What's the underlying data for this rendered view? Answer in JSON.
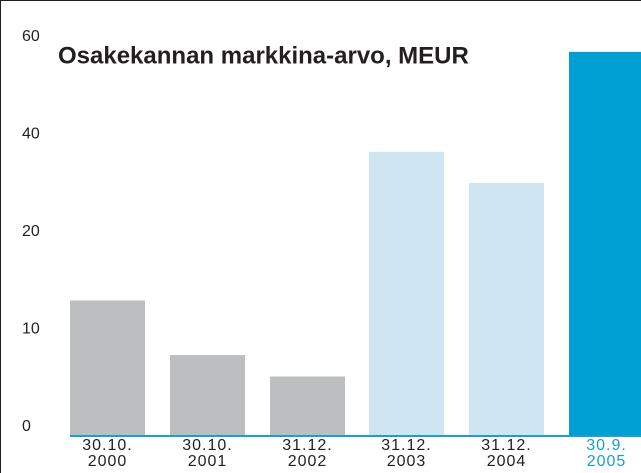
{
  "chart_data": {
    "type": "bar",
    "title": "Osakekannan markkina-arvo, MEUR",
    "categories": [
      "30.10. 2000",
      "30.10. 2001",
      "31.12. 2002",
      "31.12. 2003",
      "31.12. 2004",
      "30.9. 2005"
    ],
    "values": [
      13.9,
      8.3,
      6.1,
      38.3,
      31.9,
      58.8
    ],
    "colors": [
      "#bcbec0",
      "#bcbec0",
      "#bcbec0",
      "#cfe5f2",
      "#cfe5f2",
      "#009fd3"
    ],
    "label_colors": [
      "#231f20",
      "#231f20",
      "#231f20",
      "#231f20",
      "#231f20",
      "#1a9fd0"
    ],
    "axis_color": "#1a9fd0",
    "ylim": [
      0,
      60
    ],
    "yticks": [
      0,
      10,
      20,
      40,
      60
    ],
    "grid": false
  }
}
